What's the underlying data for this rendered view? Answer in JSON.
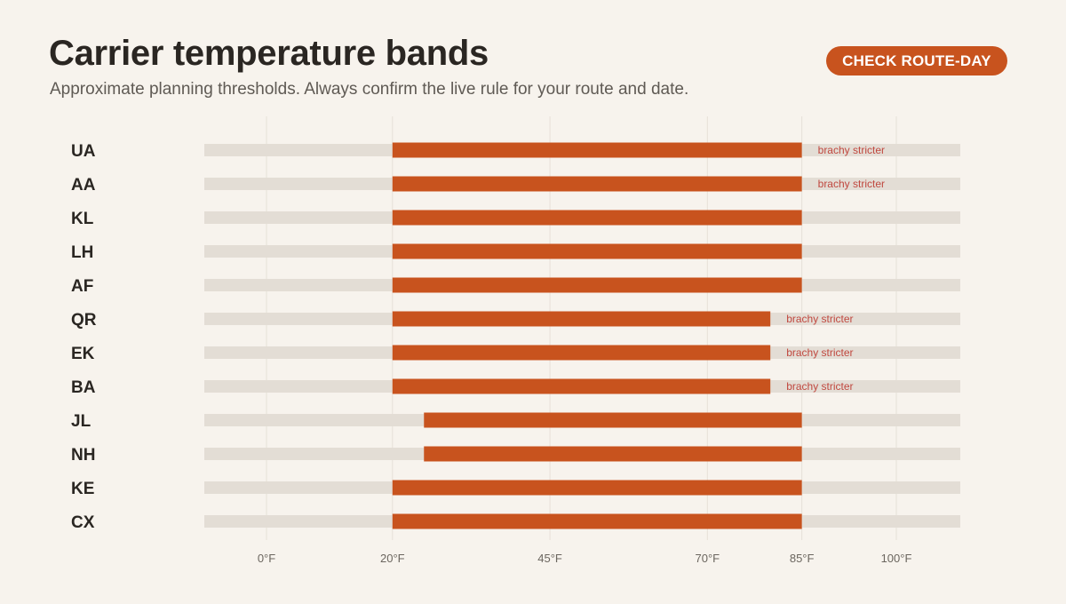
{
  "header": {
    "title": "Carrier temperature bands",
    "subtitle": "Approximate planning thresholds. Always confirm the live rule for your route and date.",
    "cta_label": "CHECK ROUTE-DAY"
  },
  "colors": {
    "band": "#c8531e",
    "track": "#e3ddd5",
    "grid": "#e6e0d8",
    "note": "#c0483f",
    "cta": "#c8531e"
  },
  "chart_data": {
    "type": "bar",
    "orientation": "horizontal-range",
    "title": "Carrier temperature bands",
    "xlabel": "",
    "ylabel": "",
    "unit": "°F",
    "xlim": [
      -10,
      110
    ],
    "grid": true,
    "ticks": [
      {
        "value": 0,
        "label": "0°F"
      },
      {
        "value": 20,
        "label": "20°F"
      },
      {
        "value": 45,
        "label": "45°F"
      },
      {
        "value": 70,
        "label": "70°F"
      },
      {
        "value": 85,
        "label": "85°F"
      },
      {
        "value": 100,
        "label": "100°F"
      }
    ],
    "categories": [
      "UA",
      "AA",
      "KL",
      "LH",
      "AF",
      "QR",
      "EK",
      "BA",
      "JL",
      "NH",
      "KE",
      "CX"
    ],
    "ranges": [
      {
        "carrier": "UA",
        "min": 20,
        "max": 85,
        "note": "brachy stricter"
      },
      {
        "carrier": "AA",
        "min": 20,
        "max": 85,
        "note": "brachy stricter"
      },
      {
        "carrier": "KL",
        "min": 20,
        "max": 85,
        "note": ""
      },
      {
        "carrier": "LH",
        "min": 20,
        "max": 85,
        "note": ""
      },
      {
        "carrier": "AF",
        "min": 20,
        "max": 85,
        "note": ""
      },
      {
        "carrier": "QR",
        "min": 20,
        "max": 80,
        "note": "brachy stricter"
      },
      {
        "carrier": "EK",
        "min": 20,
        "max": 80,
        "note": "brachy stricter"
      },
      {
        "carrier": "BA",
        "min": 20,
        "max": 80,
        "note": "brachy stricter"
      },
      {
        "carrier": "JL",
        "min": 25,
        "max": 85,
        "note": ""
      },
      {
        "carrier": "NH",
        "min": 25,
        "max": 85,
        "note": ""
      },
      {
        "carrier": "KE",
        "min": 20,
        "max": 85,
        "note": ""
      },
      {
        "carrier": "CX",
        "min": 20,
        "max": 85,
        "note": ""
      }
    ]
  }
}
